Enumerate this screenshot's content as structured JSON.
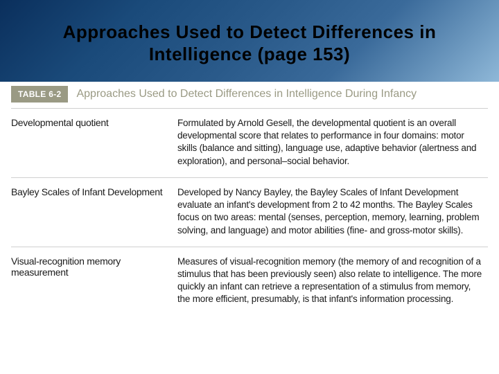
{
  "slide": {
    "title": "Approaches Used to Detect Differences in Intelligence (page 153)",
    "title_color": "#000000",
    "title_fontsize": 26,
    "title_fontweight": 900,
    "header_gradient": [
      "#0a2f5c",
      "#1a4a7a",
      "#2a5a8a",
      "#3a6a9a",
      "#8fb8d8"
    ]
  },
  "table": {
    "badge": "TABLE 6-2",
    "badge_bg": "#9a9a84",
    "badge_color": "#ffffff",
    "caption": "Approaches Used to Detect Differences in Intelligence During Infancy",
    "caption_color": "#9a9a84",
    "caption_fontsize": 16,
    "border_color": "#cfcfcf",
    "left_col_width": 240,
    "body_fontsize": 13.5,
    "left_fontsize": 14,
    "rows": [
      {
        "name": "Developmental quotient",
        "desc": "Formulated by Arnold Gesell, the developmental quotient is an overall developmental score that relates to performance in four domains: motor skills (balance and sitting), language use, adaptive behavior (alertness and exploration), and personal–social behavior."
      },
      {
        "name": "Bayley Scales of Infant Development",
        "desc": "Developed by Nancy Bayley, the Bayley Scales of Infant Development evaluate an infant's development from 2 to 42 months. The Bayley Scales focus on two areas: mental (senses, perception, memory, learning, problem solving, and language) and motor abilities (fine- and gross-motor skills)."
      },
      {
        "name": "Visual-recognition memory measurement",
        "desc": "Measures of visual-recognition memory (the memory of and recognition of a stimulus that has been previously seen) also relate to intelligence. The more quickly an infant can retrieve a representation of a stimulus from memory, the more efficient, presumably, is that infant's information processing."
      }
    ]
  }
}
